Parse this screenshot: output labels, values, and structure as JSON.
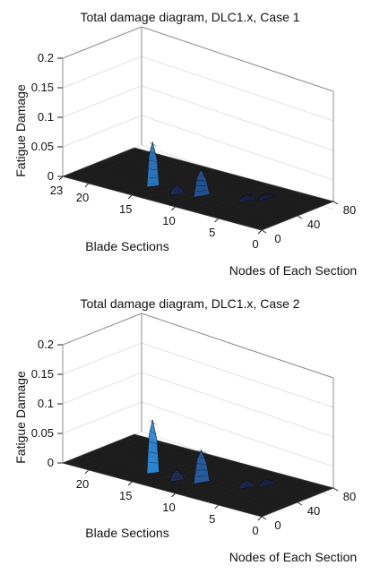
{
  "chart_data": [
    {
      "type": "surface",
      "title": "Total damage diagram, DLC1.x, Case 1",
      "xlabel": "Nodes of Each Section",
      "ylabel": "Blade Sections",
      "zlabel": "Fatigue Damage",
      "x_ticks": [
        "0",
        "40",
        "80"
      ],
      "y_ticks": [
        "0",
        "5",
        "10",
        "15",
        "20",
        "23"
      ],
      "z_ticks": [
        "0",
        "0.05",
        "0.1",
        "0.15",
        "0.2"
      ],
      "xlim": [
        0,
        80
      ],
      "ylim": [
        0,
        23
      ],
      "zlim": [
        0,
        0.2
      ],
      "grid": true,
      "peaks": [
        {
          "section": 15,
          "node": 24,
          "value": 0.075
        },
        {
          "section": 12,
          "node": 22,
          "value": 0.015
        },
        {
          "section": 10,
          "node": 30,
          "value": 0.045
        },
        {
          "section": 6,
          "node": 42,
          "value": 0.01
        },
        {
          "section": 5,
          "node": 55,
          "value": 0.008
        }
      ],
      "colors": {
        "low": "#1a1a4d",
        "mid": "#2f96e8",
        "high": "#7ee06e"
      }
    },
    {
      "type": "surface",
      "title": "Total damage diagram, DLC1.x, Case 2",
      "xlabel": "Nodes of Each Section",
      "ylabel": "Blade Sections",
      "zlabel": "Fatigue Damage",
      "x_ticks": [
        "0",
        "40",
        "80"
      ],
      "y_ticks": [
        "0",
        "5",
        "10",
        "15",
        "20"
      ],
      "z_ticks": [
        "0",
        "0.05",
        "0.1",
        "0.15",
        "0.2"
      ],
      "xlim": [
        0,
        80
      ],
      "ylim": [
        0,
        23
      ],
      "zlim": [
        0,
        0.2
      ],
      "grid": true,
      "peaks": [
        {
          "section": 15,
          "node": 24,
          "value": 0.09
        },
        {
          "section": 12,
          "node": 22,
          "value": 0.018
        },
        {
          "section": 10,
          "node": 30,
          "value": 0.055
        },
        {
          "section": 6,
          "node": 42,
          "value": 0.012
        },
        {
          "section": 5,
          "node": 55,
          "value": 0.01
        }
      ],
      "colors": {
        "low": "#1a1a4d",
        "mid": "#2f96e8",
        "high": "#7ee06e"
      }
    }
  ]
}
